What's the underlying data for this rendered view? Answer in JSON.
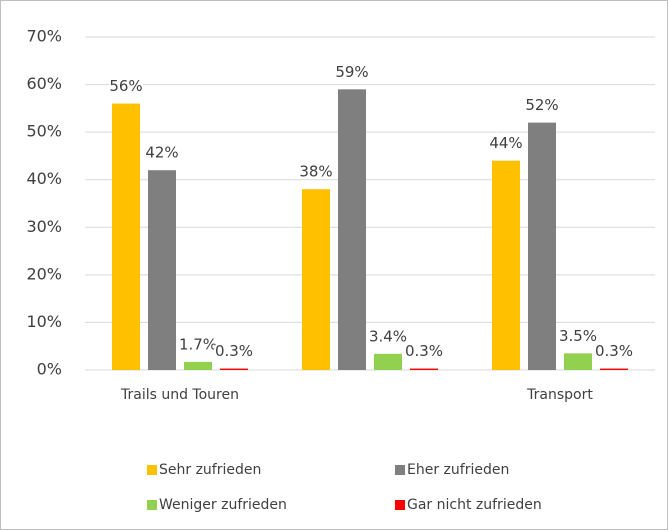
{
  "chart_data": {
    "type": "bar",
    "categories": [
      "Trails und Touren",
      null,
      "Transport"
    ],
    "series": [
      {
        "name": "Sehr zufrieden",
        "color": "#ffc000",
        "values": [
          56,
          38,
          44
        ],
        "value_labels": [
          "56%",
          "38%",
          "44%"
        ]
      },
      {
        "name": "Eher zufrieden",
        "color": "#7f7f7f",
        "values": [
          42,
          59,
          52
        ],
        "value_labels": [
          "42%",
          "59%",
          "52%"
        ]
      },
      {
        "name": "Weniger zufrieden",
        "color": "#92d050",
        "values": [
          1.7,
          3.4,
          3.5
        ],
        "value_labels": [
          "1.7%",
          "3.4%",
          "3.5%"
        ]
      },
      {
        "name": "Gar nicht zufrieden",
        "color": "#ff0000",
        "values": [
          0.3,
          0.3,
          0.3
        ],
        "value_labels": [
          "0.3%",
          "0.3%",
          "0.3%"
        ]
      }
    ],
    "ylim": [
      0,
      70
    ],
    "yticks": [
      {
        "value": 0,
        "label": "0%"
      },
      {
        "value": 10,
        "label": "10%"
      },
      {
        "value": 20,
        "label": "20%"
      },
      {
        "value": 30,
        "label": "30%"
      },
      {
        "value": 40,
        "label": "40%"
      },
      {
        "value": 50,
        "label": "50%"
      },
      {
        "value": 60,
        "label": "60%"
      },
      {
        "value": 70,
        "label": "70%"
      }
    ],
    "grid": true,
    "legend": "bottom"
  }
}
